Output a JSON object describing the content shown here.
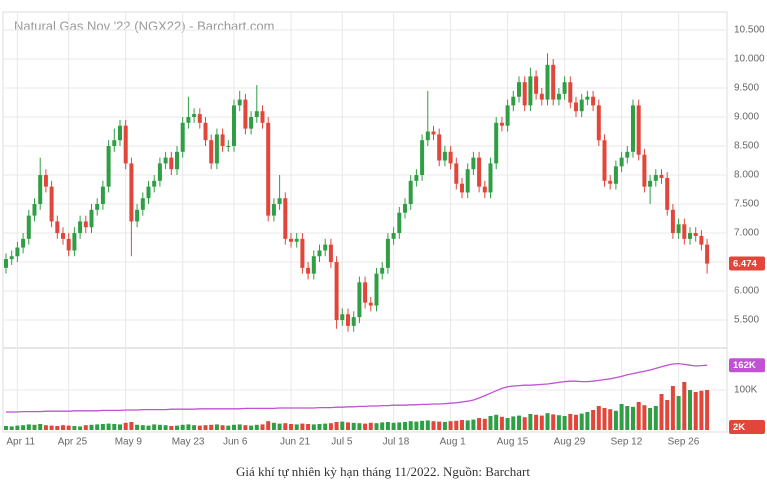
{
  "chart_data": {
    "type": "candlestick",
    "title": "Natural Gas Nov '22 (NGX22) - Barchart.com",
    "caption": "Giá khí tự nhiên kỳ hạn tháng 11/2022. Nguồn: Barchart",
    "categories": [
      null,
      null,
      "Apr 11",
      null,
      null,
      null,
      null,
      null,
      null,
      null,
      null,
      "Apr 25",
      null,
      null,
      null,
      null,
      null,
      null,
      null,
      null,
      null,
      "May 9",
      null,
      null,
      null,
      null,
      null,
      null,
      null,
      null,
      null,
      "May 23",
      null,
      null,
      null,
      null,
      null,
      null,
      null,
      null,
      "Jun 6",
      null,
      null,
      null,
      null,
      null,
      null,
      null,
      null,
      null,
      "Jun 21",
      null,
      null,
      null,
      null,
      null,
      null,
      null,
      null,
      "Jul 5",
      null,
      null,
      null,
      null,
      null,
      null,
      null,
      null,
      "Jul 18",
      null,
      null,
      null,
      null,
      null,
      null,
      null,
      null,
      null,
      "Aug 1",
      null,
      null,
      null,
      null,
      null,
      null,
      null,
      null,
      null,
      "Aug 15",
      null,
      null,
      null,
      null,
      null,
      null,
      null,
      null,
      null,
      "Aug 29",
      null,
      null,
      null,
      null,
      null,
      null,
      null,
      null,
      null,
      "Sep 12",
      null,
      null,
      null,
      null,
      null,
      null,
      null,
      null,
      null,
      "Sep 26",
      null,
      null,
      null,
      null,
      null
    ],
    "open": [
      6.4,
      6.55,
      6.6,
      6.75,
      6.9,
      7.3,
      7.5,
      8.0,
      7.8,
      7.2,
      7.0,
      6.9,
      6.7,
      7.0,
      7.2,
      7.1,
      7.4,
      7.5,
      7.8,
      8.5,
      8.6,
      8.85,
      8.2,
      7.2,
      7.4,
      7.6,
      7.8,
      7.9,
      8.2,
      8.3,
      8.1,
      8.4,
      8.9,
      9.0,
      9.05,
      8.9,
      8.6,
      8.2,
      8.7,
      8.5,
      8.5,
      9.2,
      9.3,
      8.8,
      9.0,
      9.1,
      8.9,
      7.3,
      7.5,
      7.6,
      6.9,
      6.85,
      6.9,
      6.4,
      6.3,
      6.6,
      6.7,
      6.8,
      6.5,
      5.5,
      5.6,
      5.4,
      5.55,
      6.15,
      5.8,
      5.75,
      6.3,
      6.4,
      6.9,
      7.0,
      7.35,
      7.5,
      7.9,
      8.0,
      8.6,
      8.75,
      8.7,
      8.25,
      8.4,
      8.2,
      7.85,
      7.7,
      8.1,
      8.3,
      7.8,
      7.7,
      8.2,
      8.9,
      8.85,
      9.2,
      9.35,
      9.6,
      9.2,
      9.7,
      9.4,
      9.3,
      9.9,
      9.3,
      9.4,
      9.6,
      9.25,
      9.1,
      9.3,
      9.35,
      9.2,
      8.6,
      7.9,
      7.85,
      8.15,
      8.3,
      8.4,
      9.2,
      8.35,
      7.8,
      7.9,
      8.0,
      7.95,
      7.4,
      7.0,
      7.15,
      6.9,
      7.0,
      6.95,
      6.8
    ],
    "high": [
      6.65,
      6.7,
      6.85,
      7.0,
      7.4,
      7.6,
      8.3,
      8.1,
      7.9,
      7.3,
      7.1,
      7.0,
      7.1,
      7.3,
      7.3,
      7.5,
      7.6,
      7.9,
      8.6,
      8.8,
      8.95,
      8.95,
      8.3,
      7.5,
      7.7,
      7.9,
      8.0,
      8.3,
      8.4,
      8.4,
      8.5,
      9.0,
      9.35,
      9.15,
      9.15,
      9.0,
      8.7,
      8.8,
      8.8,
      8.6,
      9.3,
      9.45,
      9.4,
      9.1,
      9.55,
      9.2,
      9.0,
      7.6,
      8.0,
      7.7,
      7.0,
      7.0,
      7.0,
      6.5,
      6.7,
      6.8,
      6.9,
      6.9,
      6.6,
      5.7,
      5.7,
      5.65,
      6.25,
      6.25,
      5.9,
      6.4,
      6.5,
      7.0,
      7.1,
      7.45,
      7.6,
      8.0,
      8.1,
      8.7,
      9.45,
      8.85,
      8.8,
      8.5,
      8.5,
      8.3,
      7.95,
      8.2,
      8.4,
      8.4,
      7.9,
      8.3,
      9.0,
      9.0,
      9.3,
      9.45,
      9.7,
      9.7,
      9.85,
      9.8,
      9.5,
      10.1,
      10.0,
      9.5,
      9.7,
      9.7,
      9.35,
      9.4,
      9.45,
      9.45,
      9.3,
      8.7,
      8.0,
      8.25,
      8.4,
      8.5,
      9.3,
      9.3,
      8.45,
      8.0,
      8.1,
      8.1,
      8.05,
      7.5,
      7.25,
      7.25,
      7.1,
      7.1,
      7.05,
      6.9
    ],
    "low": [
      6.3,
      6.45,
      6.5,
      6.65,
      6.8,
      7.2,
      7.4,
      7.7,
      7.1,
      6.9,
      6.8,
      6.6,
      6.6,
      6.9,
      7.0,
      7.0,
      7.3,
      7.4,
      7.7,
      8.4,
      8.5,
      8.1,
      6.6,
      7.1,
      7.3,
      7.5,
      7.7,
      7.8,
      8.1,
      8.0,
      8.0,
      8.3,
      8.8,
      8.9,
      8.8,
      8.5,
      8.1,
      8.1,
      8.4,
      8.4,
      8.4,
      9.1,
      8.7,
      8.7,
      8.9,
      8.8,
      7.2,
      7.2,
      7.4,
      6.8,
      6.75,
      6.75,
      6.3,
      6.2,
      6.2,
      6.5,
      6.6,
      6.4,
      5.35,
      5.4,
      5.3,
      5.3,
      5.45,
      5.7,
      5.65,
      5.65,
      6.2,
      6.3,
      6.8,
      6.9,
      7.25,
      7.4,
      7.8,
      7.9,
      8.5,
      8.6,
      8.15,
      8.15,
      8.1,
      7.75,
      7.6,
      7.6,
      8.0,
      7.7,
      7.6,
      7.6,
      8.1,
      8.75,
      8.75,
      9.1,
      9.25,
      9.1,
      9.1,
      9.3,
      9.2,
      9.2,
      9.2,
      9.2,
      9.3,
      9.15,
      9.0,
      9.0,
      9.2,
      9.1,
      8.5,
      7.8,
      7.75,
      7.75,
      8.05,
      8.2,
      8.3,
      8.25,
      7.7,
      7.5,
      7.8,
      7.85,
      7.3,
      6.9,
      6.9,
      6.8,
      6.8,
      6.85,
      6.7,
      6.3
    ],
    "close": [
      6.55,
      6.6,
      6.75,
      6.9,
      7.3,
      7.5,
      8.0,
      7.8,
      7.2,
      7.0,
      6.9,
      6.7,
      7.0,
      7.2,
      7.1,
      7.4,
      7.5,
      7.8,
      8.5,
      8.6,
      8.85,
      8.2,
      7.2,
      7.4,
      7.6,
      7.8,
      7.9,
      8.2,
      8.3,
      8.1,
      8.4,
      8.9,
      9.0,
      9.05,
      8.9,
      8.6,
      8.2,
      8.7,
      8.5,
      8.5,
      9.2,
      9.3,
      8.8,
      9.0,
      9.1,
      8.9,
      7.3,
      7.5,
      7.6,
      6.9,
      6.85,
      6.9,
      6.4,
      6.3,
      6.6,
      6.7,
      6.8,
      6.5,
      5.5,
      5.6,
      5.4,
      5.55,
      6.15,
      5.8,
      5.75,
      6.3,
      6.4,
      6.9,
      7.0,
      7.35,
      7.5,
      7.9,
      8.0,
      8.6,
      8.75,
      8.7,
      8.25,
      8.4,
      8.2,
      7.85,
      7.7,
      8.1,
      8.3,
      7.8,
      7.7,
      8.2,
      8.9,
      8.85,
      9.2,
      9.35,
      9.6,
      9.2,
      9.7,
      9.4,
      9.3,
      9.9,
      9.3,
      9.4,
      9.6,
      9.25,
      9.1,
      9.3,
      9.35,
      9.2,
      8.6,
      7.9,
      7.85,
      8.15,
      8.3,
      8.4,
      9.2,
      8.35,
      7.8,
      7.9,
      8.0,
      7.95,
      7.4,
      7.0,
      7.15,
      6.9,
      7.0,
      6.95,
      6.8,
      6.474
    ],
    "up_color": "#2f9e44",
    "down_color": "#e2453a",
    "ylim": [
      5.07,
      10.81
    ],
    "yticks": [
      {
        "value": 5.5,
        "label": "5.500"
      },
      {
        "value": 6,
        "label": "6.000"
      },
      {
        "value": 6.5,
        "label": "6.500"
      },
      {
        "value": 7,
        "label": "7.000"
      },
      {
        "value": 7.5,
        "label": "7.500"
      },
      {
        "value": 8,
        "label": "8.000"
      },
      {
        "value": 8.5,
        "label": "8.500"
      },
      {
        "value": 9,
        "label": "9.000"
      },
      {
        "value": 9.5,
        "label": "9.500"
      },
      {
        "value": 10,
        "label": "10.000"
      },
      {
        "value": 10.5,
        "label": "10.500"
      }
    ],
    "grid": true,
    "price_tag": {
      "value": 6.474,
      "label": "6.474",
      "color": "#e2453a"
    },
    "volume": {
      "values": [
        10,
        9,
        11,
        12,
        14,
        13,
        15,
        12,
        11,
        10,
        12,
        11,
        10,
        9,
        12,
        13,
        14,
        15,
        16,
        15,
        14,
        18,
        20,
        13,
        12,
        11,
        14,
        13,
        12,
        10,
        11,
        13,
        14,
        12,
        11,
        12,
        13,
        14,
        12,
        11,
        13,
        14,
        12,
        11,
        13,
        14,
        22,
        18,
        16,
        17,
        15,
        14,
        16,
        15,
        14,
        15,
        16,
        17,
        20,
        21,
        19,
        18,
        17,
        16,
        18,
        17,
        19,
        20,
        18,
        19,
        20,
        22,
        21,
        23,
        24,
        22,
        21,
        20,
        22,
        23,
        25,
        24,
        26,
        30,
        28,
        35,
        38,
        33,
        30,
        34,
        36,
        32,
        40,
        38,
        36,
        42,
        39,
        37,
        35,
        40,
        38,
        41,
        45,
        50,
        60,
        55,
        52,
        48,
        65,
        60,
        58,
        70,
        62,
        55,
        60,
        90,
        75,
        110,
        85,
        120,
        100,
        95,
        98,
        100
      ],
      "ylim": [
        0,
        200
      ],
      "yticks": [
        {
          "value": 100,
          "label": "100K"
        }
      ],
      "tag": {
        "value": 2,
        "label": "2K",
        "color": "#e2453a"
      }
    },
    "open_interest": {
      "color": "#c152d4",
      "values": [
        45,
        45,
        45,
        46,
        46,
        46,
        46,
        47,
        47,
        47,
        47,
        47,
        48,
        48,
        48,
        48,
        48,
        49,
        49,
        49,
        49,
        50,
        50,
        50,
        51,
        51,
        51,
        51,
        51,
        52,
        52,
        52,
        52,
        52,
        53,
        53,
        53,
        53,
        53,
        53,
        53,
        53,
        54,
        54,
        54,
        54,
        54,
        54,
        55,
        55,
        55,
        55,
        55,
        55,
        55,
        56,
        56,
        56,
        57,
        57,
        58,
        58,
        59,
        59,
        60,
        60,
        61,
        61,
        62,
        62,
        62,
        63,
        63,
        64,
        64,
        65,
        65,
        66,
        67,
        68,
        70,
        72,
        75,
        80,
        86,
        92,
        98,
        104,
        108,
        110,
        111,
        112,
        112,
        113,
        114,
        115,
        117,
        119,
        121,
        122,
        122,
        121,
        121,
        122,
        124,
        126,
        128,
        131,
        134,
        138,
        141,
        144,
        147,
        150,
        154,
        158,
        162,
        165,
        166,
        164,
        162,
        160,
        161,
        162
      ],
      "tag": {
        "value": 162,
        "label": "162K",
        "color": "#c152d4"
      }
    }
  }
}
